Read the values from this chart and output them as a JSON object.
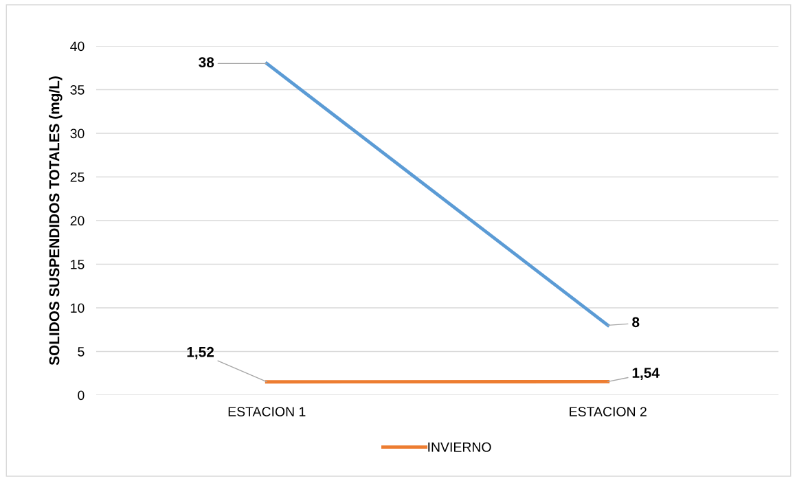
{
  "chart_data": {
    "type": "line",
    "ylabel": "SOLIDOS SUSPENDIDOS TOTALES (mg/L)",
    "categories": [
      "ESTACION 1",
      "ESTACION 2"
    ],
    "series": [
      {
        "color": "#5b9bd5",
        "values": [
          38,
          8
        ],
        "value_labels": [
          "38",
          "8"
        ]
      },
      {
        "name": "INVIERNO",
        "color": "#ed7d31",
        "values": [
          1.52,
          1.54
        ],
        "value_labels": [
          "1,52",
          "1,54"
        ]
      }
    ],
    "ylim": [
      0,
      40
    ],
    "yticks": [
      0,
      5,
      10,
      15,
      20,
      25,
      30,
      35,
      40
    ],
    "grid": "y",
    "legend": "bottom",
    "marker": "none",
    "line_style": "solid"
  }
}
